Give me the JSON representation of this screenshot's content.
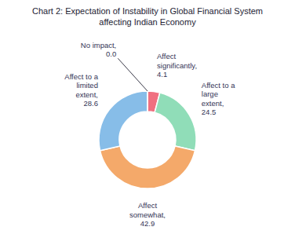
{
  "chart_data": {
    "type": "donut",
    "title": "Chart 2: Expectation of Instability in Global Financial System\naffecting Indian Economy",
    "categories": [
      "Affect\nsignificantly,\n4.1",
      "Affect to a\nlarge\nextent,\n24.5",
      "Affect\nsomewhat,\n42.9",
      "Affect to a\nlimited\nextent,\n28.6",
      "No impact,\n0.0"
    ],
    "values": [
      4.1,
      24.5,
      42.9,
      28.6,
      0.0
    ],
    "colors": [
      "#f07080",
      "#90ddb8",
      "#f4a96a",
      "#87bde8",
      "#87bde8"
    ]
  }
}
